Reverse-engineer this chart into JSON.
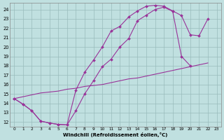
{
  "xlabel": "Windchill (Refroidissement éolien,°C)",
  "bg_color": "#c0e0e0",
  "grid_color": "#99bbbb",
  "line_color": "#993399",
  "curve1_x": [
    0,
    1,
    2,
    3,
    4,
    5,
    6,
    7,
    8,
    9,
    10,
    11,
    12,
    13,
    14,
    15,
    16,
    17,
    18,
    19,
    20,
    21,
    22
  ],
  "curve1_y": [
    14.5,
    13.9,
    13.2,
    12.1,
    11.9,
    11.75,
    11.7,
    15.4,
    17.3,
    18.6,
    20.0,
    21.7,
    22.2,
    23.2,
    23.85,
    24.35,
    24.45,
    24.35,
    23.85,
    23.35,
    21.3,
    21.2,
    23.0
  ],
  "curve2_x": [
    0,
    1,
    2,
    3,
    4,
    5,
    6,
    7,
    8,
    9,
    10,
    11,
    12,
    13,
    14,
    15,
    16,
    17,
    18,
    19,
    20
  ],
  "curve2_y": [
    14.5,
    13.9,
    13.2,
    12.1,
    11.9,
    11.75,
    11.7,
    13.2,
    15.0,
    16.4,
    17.9,
    18.7,
    20.0,
    20.9,
    22.8,
    23.4,
    24.0,
    24.25,
    23.8,
    19.0,
    18.0
  ],
  "curve3_x": [
    0,
    1,
    2,
    3,
    4,
    5,
    6,
    7,
    8,
    9,
    10,
    11,
    12,
    13,
    14,
    15,
    16,
    17,
    18,
    19,
    20,
    21,
    22
  ],
  "curve3_y": [
    14.5,
    14.7,
    14.9,
    15.1,
    15.2,
    15.3,
    15.5,
    15.6,
    15.8,
    15.9,
    16.0,
    16.2,
    16.4,
    16.6,
    16.7,
    16.9,
    17.1,
    17.3,
    17.5,
    17.7,
    17.9,
    18.1,
    18.3
  ],
  "xlim": [
    -0.5,
    23.5
  ],
  "ylim": [
    11.5,
    24.7
  ],
  "yticks": [
    12,
    13,
    14,
    15,
    16,
    17,
    18,
    19,
    20,
    21,
    22,
    23,
    24
  ],
  "xticks": [
    0,
    1,
    2,
    3,
    4,
    5,
    6,
    7,
    8,
    9,
    10,
    11,
    12,
    13,
    14,
    15,
    16,
    17,
    18,
    19,
    20,
    21,
    22,
    23
  ]
}
